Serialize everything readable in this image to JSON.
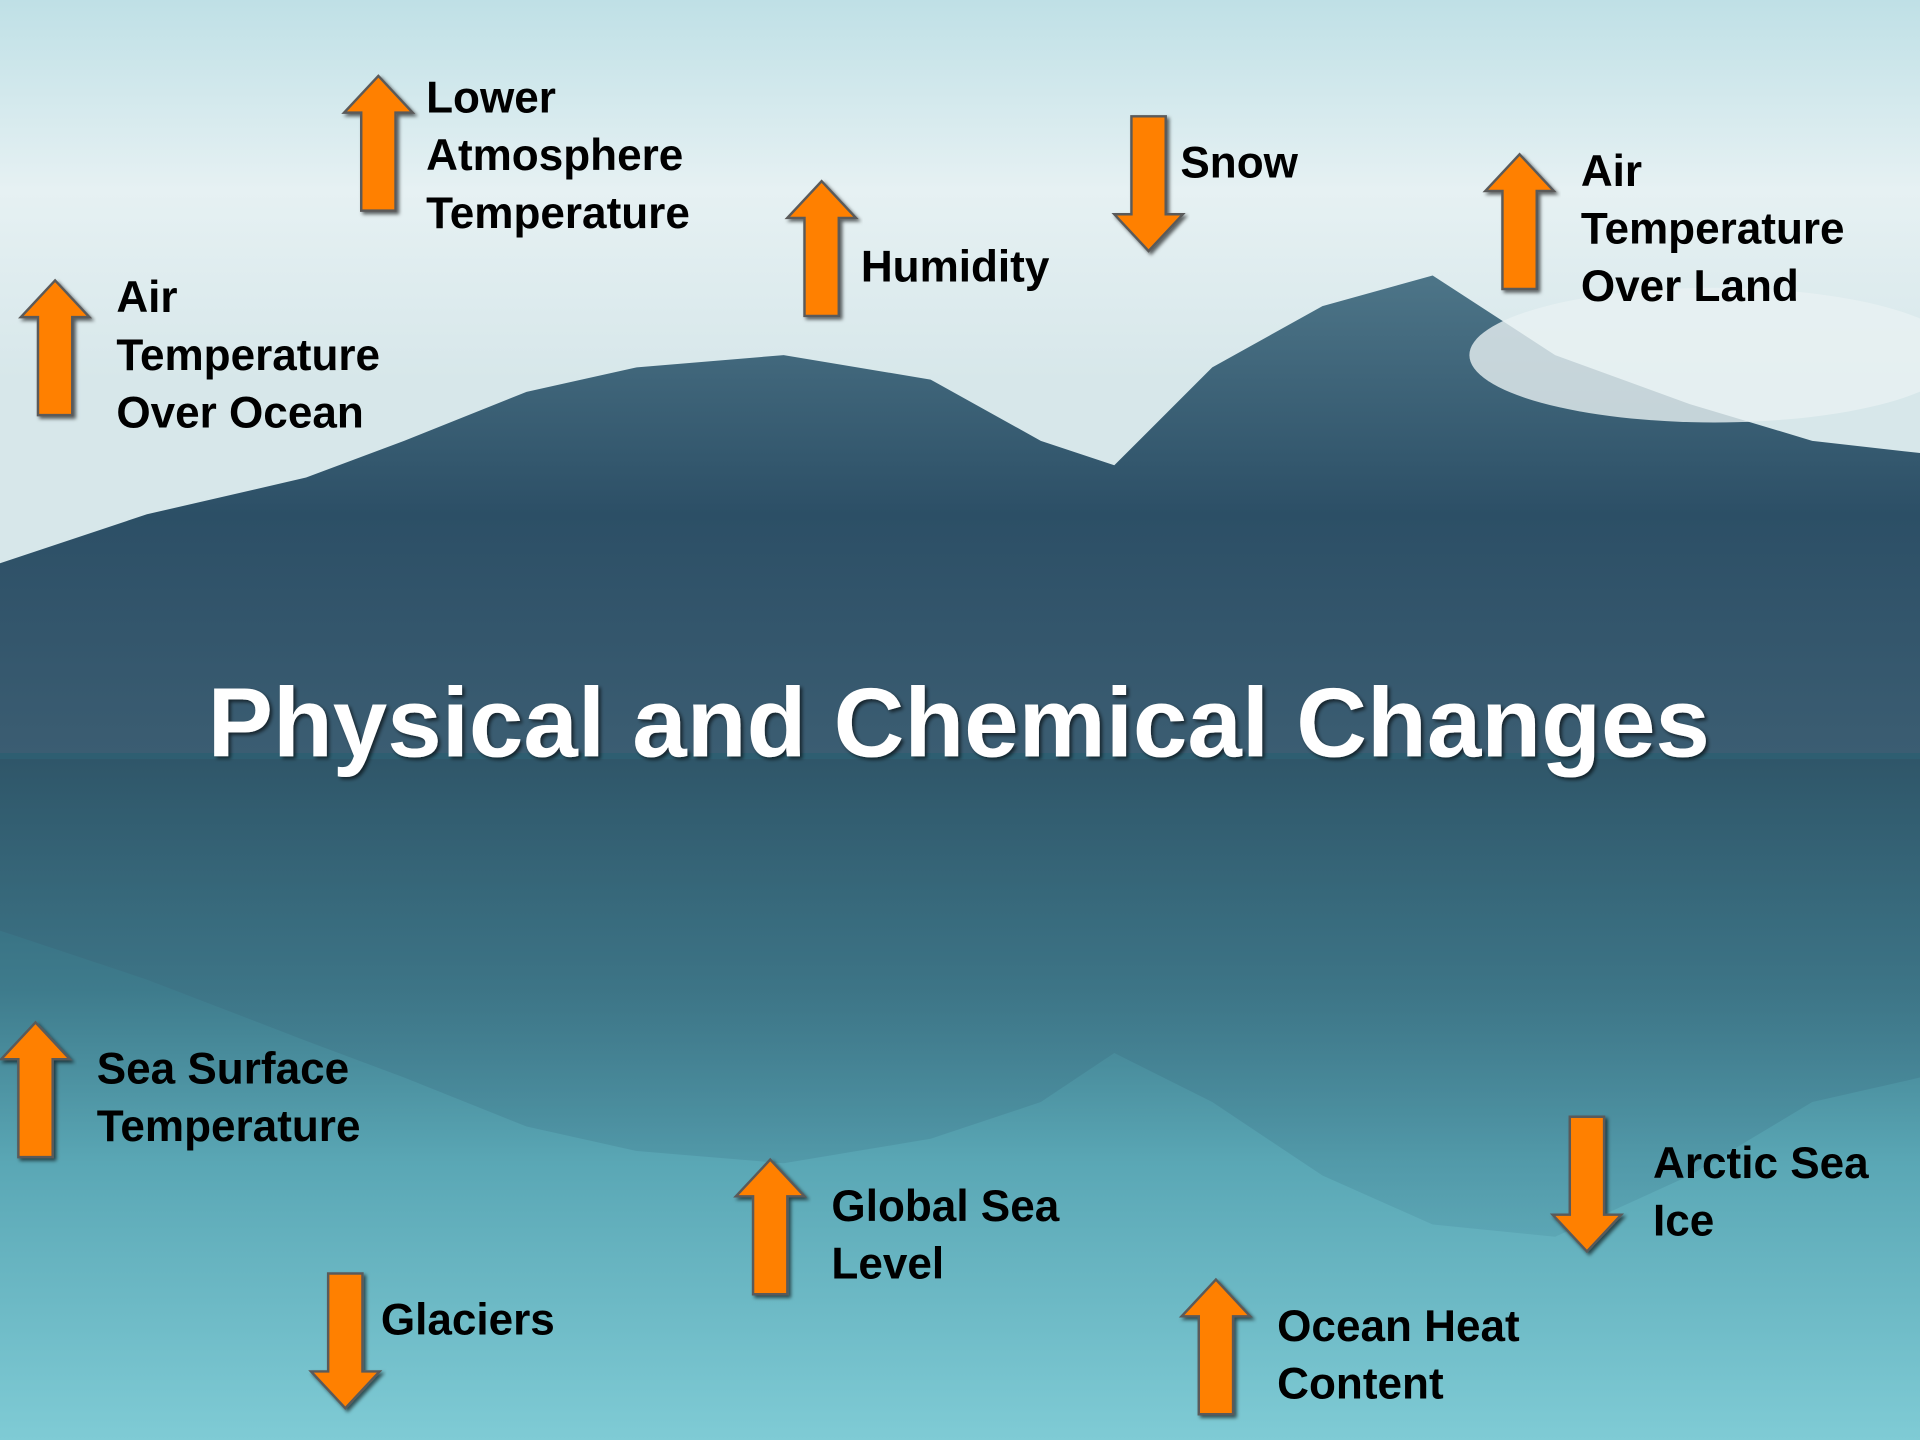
{
  "title": "Physical and Chemical Changes",
  "items": [
    {
      "lines": [
        "Lower",
        "Atmosphere",
        "Temperature"
      ],
      "direction": "up"
    },
    {
      "lines": [
        "Humidity"
      ],
      "direction": "up"
    },
    {
      "lines": [
        "Snow"
      ],
      "direction": "down"
    },
    {
      "lines": [
        "Air",
        "Temperature",
        "Over Land"
      ],
      "direction": "up"
    },
    {
      "lines": [
        "Air",
        "Temperature",
        "Over Ocean"
      ],
      "direction": "up"
    },
    {
      "lines": [
        "Sea Surface",
        "Temperature"
      ],
      "direction": "up"
    },
    {
      "lines": [
        "Global Sea",
        "Level"
      ],
      "direction": "up"
    },
    {
      "lines": [
        "Glaciers"
      ],
      "direction": "down"
    },
    {
      "lines": [
        "Arctic Sea",
        "Ice"
      ],
      "direction": "down"
    },
    {
      "lines": [
        "Ocean Heat",
        "Content"
      ],
      "direction": "up"
    }
  ]
}
